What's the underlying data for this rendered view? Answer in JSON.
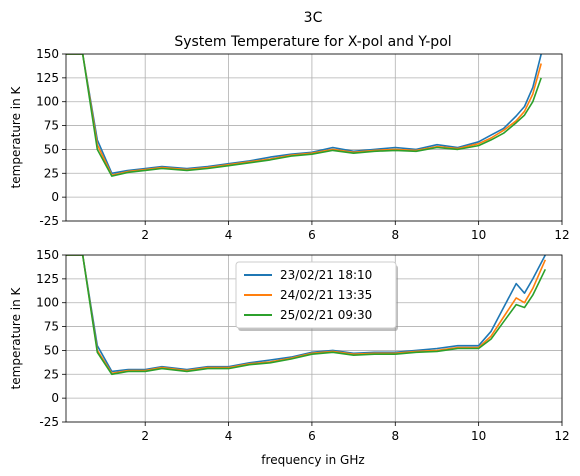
{
  "chart_data": [
    {
      "type": "line",
      "title": "3C",
      "subtitle": "System Temperature for X-pol and Y-pol",
      "xlabel": "",
      "ylabel": "temperature in K",
      "xlim": [
        0.1,
        12
      ],
      "ylim": [
        -25,
        150
      ],
      "xticks": [
        2,
        4,
        6,
        8,
        10,
        12
      ],
      "yticks": [
        -25,
        0,
        25,
        50,
        75,
        100,
        125,
        150
      ],
      "grid": true,
      "legend": "none",
      "series": [
        {
          "color": "#1f77b4",
          "x": [
            0.1,
            0.5,
            0.85,
            1.2,
            1.6,
            2.0,
            2.4,
            3.0,
            3.5,
            4.0,
            4.5,
            5.0,
            5.5,
            6.0,
            6.5,
            7.0,
            7.5,
            8.0,
            8.5,
            9.0,
            9.5,
            10.0,
            10.3,
            10.6,
            10.9,
            11.1,
            11.3,
            11.5
          ],
          "y": [
            150,
            150,
            60,
            25,
            28,
            30,
            32,
            30,
            32,
            35,
            38,
            42,
            45,
            47,
            52,
            48,
            50,
            52,
            50,
            55,
            52,
            58,
            65,
            72,
            85,
            95,
            115,
            150
          ]
        },
        {
          "color": "#ff7f0e",
          "x": [
            0.1,
            0.5,
            0.85,
            1.2,
            1.6,
            2.0,
            2.4,
            3.0,
            3.5,
            4.0,
            4.5,
            5.0,
            5.5,
            6.0,
            6.5,
            7.0,
            7.5,
            8.0,
            8.5,
            9.0,
            9.5,
            10.0,
            10.3,
            10.6,
            10.9,
            11.1,
            11.3,
            11.5
          ],
          "y": [
            150,
            150,
            55,
            23,
            27,
            29,
            31,
            29,
            31,
            34,
            37,
            40,
            44,
            46,
            50,
            47,
            49,
            50,
            49,
            53,
            51,
            56,
            62,
            70,
            80,
            90,
            108,
            140
          ]
        },
        {
          "color": "#2ca02c",
          "x": [
            0.1,
            0.5,
            0.85,
            1.2,
            1.6,
            2.0,
            2.4,
            3.0,
            3.5,
            4.0,
            4.5,
            5.0,
            5.5,
            6.0,
            6.5,
            7.0,
            7.5,
            8.0,
            8.5,
            9.0,
            9.5,
            10.0,
            10.3,
            10.6,
            10.9,
            11.1,
            11.3,
            11.5
          ],
          "y": [
            150,
            150,
            50,
            22,
            26,
            28,
            30,
            28,
            30,
            33,
            36,
            39,
            43,
            45,
            49,
            46,
            48,
            49,
            48,
            52,
            50,
            54,
            60,
            67,
            78,
            86,
            100,
            125
          ]
        }
      ]
    },
    {
      "type": "line",
      "title": "",
      "xlabel": "frequency in GHz",
      "ylabel": "temperature in K",
      "xlim": [
        0.1,
        12
      ],
      "ylim": [
        -25,
        150
      ],
      "xticks": [
        2,
        4,
        6,
        8,
        10,
        12
      ],
      "yticks": [
        -25,
        0,
        25,
        50,
        75,
        100,
        125,
        150
      ],
      "grid": true,
      "legend": "upper-center",
      "series": [
        {
          "name": "23/02/21 18:10",
          "color": "#1f77b4",
          "x": [
            0.1,
            0.5,
            0.85,
            1.2,
            1.6,
            2.0,
            2.4,
            3.0,
            3.5,
            4.0,
            4.5,
            5.0,
            5.5,
            6.0,
            6.5,
            7.0,
            7.5,
            8.0,
            8.5,
            9.0,
            9.5,
            10.0,
            10.3,
            10.6,
            10.9,
            11.1,
            11.3,
            11.6
          ],
          "y": [
            150,
            150,
            55,
            28,
            30,
            30,
            33,
            30,
            33,
            33,
            37,
            40,
            43,
            48,
            50,
            47,
            48,
            48,
            50,
            52,
            55,
            55,
            70,
            95,
            120,
            110,
            125,
            150
          ]
        },
        {
          "name": "24/02/21 13:35",
          "color": "#ff7f0e",
          "x": [
            0.1,
            0.5,
            0.85,
            1.2,
            1.6,
            2.0,
            2.4,
            3.0,
            3.5,
            4.0,
            4.5,
            5.0,
            5.5,
            6.0,
            6.5,
            7.0,
            7.5,
            8.0,
            8.5,
            9.0,
            9.5,
            10.0,
            10.3,
            10.6,
            10.9,
            11.1,
            11.3,
            11.6
          ],
          "y": [
            150,
            150,
            50,
            26,
            29,
            29,
            32,
            29,
            32,
            32,
            36,
            38,
            42,
            47,
            49,
            46,
            47,
            47,
            49,
            50,
            53,
            53,
            65,
            85,
            105,
            100,
            115,
            145
          ]
        },
        {
          "name": "25/02/21 09:30",
          "color": "#2ca02c",
          "x": [
            0.1,
            0.5,
            0.85,
            1.2,
            1.6,
            2.0,
            2.4,
            3.0,
            3.5,
            4.0,
            4.5,
            5.0,
            5.5,
            6.0,
            6.5,
            7.0,
            7.5,
            8.0,
            8.5,
            9.0,
            9.5,
            10.0,
            10.3,
            10.6,
            10.9,
            11.1,
            11.3,
            11.6
          ],
          "y": [
            150,
            150,
            48,
            25,
            28,
            28,
            31,
            28,
            31,
            31,
            35,
            37,
            41,
            46,
            48,
            45,
            46,
            46,
            48,
            49,
            52,
            52,
            62,
            80,
            98,
            95,
            108,
            135
          ]
        }
      ]
    }
  ]
}
